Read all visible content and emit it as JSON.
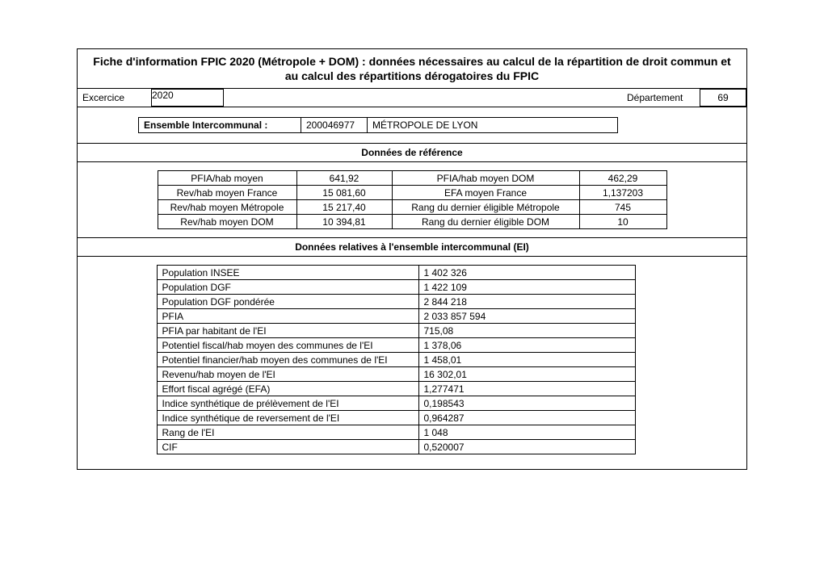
{
  "title": "Fiche d'information FPIC 2020 (Métropole + DOM) : données nécessaires au calcul de la répartition de droit commun et au calcul des répartitions dérogatoires du FPIC",
  "header": {
    "exercice_label": "Excercice",
    "exercice_value": "2020",
    "departement_label": "Département",
    "departement_value": "69"
  },
  "ensemble": {
    "label": "Ensemble Intercommunal :",
    "code": "200046977",
    "nom": "MÉTROPOLE DE LYON"
  },
  "ref": {
    "section_title": "Données de référence",
    "rows": [
      {
        "l1": "PFIA/hab moyen",
        "v1": "641,92",
        "l2": "PFIA/hab moyen DOM",
        "v2": "462,29"
      },
      {
        "l1": "Rev/hab moyen France",
        "v1": "15 081,60",
        "l2": "EFA moyen France",
        "v2": "1,137203"
      },
      {
        "l1": "Rev/hab moyen Métropole",
        "v1": "15 217,40",
        "l2": "Rang du dernier éligible Métropole",
        "v2": "745"
      },
      {
        "l1": "Rev/hab moyen DOM",
        "v1": "10 394,81",
        "l2": "Rang du dernier éligible DOM",
        "v2": "10"
      }
    ]
  },
  "ei": {
    "section_title": "Données relatives à l'ensemble intercommunal (EI)",
    "rows": [
      {
        "k": "Population INSEE",
        "v": "1 402 326"
      },
      {
        "k": "Population DGF",
        "v": "1 422 109"
      },
      {
        "k": "Population DGF pondérée",
        "v": "2 844 218"
      },
      {
        "k": "PFIA",
        "v": "2 033 857 594"
      },
      {
        "k": "PFIA par habitant de l'EI",
        "v": "715,08"
      },
      {
        "k": "Potentiel fiscal/hab moyen des communes de l'EI",
        "v": "1 378,06"
      },
      {
        "k": "Potentiel financier/hab moyen des communes de l'EI",
        "v": "1 458,01"
      },
      {
        "k": "Revenu/hab moyen de l'EI",
        "v": "16 302,01"
      },
      {
        "k": "Effort fiscal agrégé (EFA)",
        "v": "1,277471"
      },
      {
        "k": "Indice synthétique de prélèvement de l'EI",
        "v": "0,198543"
      },
      {
        "k": "Indice synthétique de reversement de l'EI",
        "v": "0,964287"
      },
      {
        "k": "Rang de l'EI",
        "v": "1 048"
      },
      {
        "k": "CIF",
        "v": "0,520007"
      }
    ]
  },
  "style": {
    "font_family": "Arial",
    "title_fontsize": 14,
    "body_fontsize": 12,
    "border_color": "#000000",
    "background_color": "#ffffff",
    "text_color": "#000000"
  }
}
